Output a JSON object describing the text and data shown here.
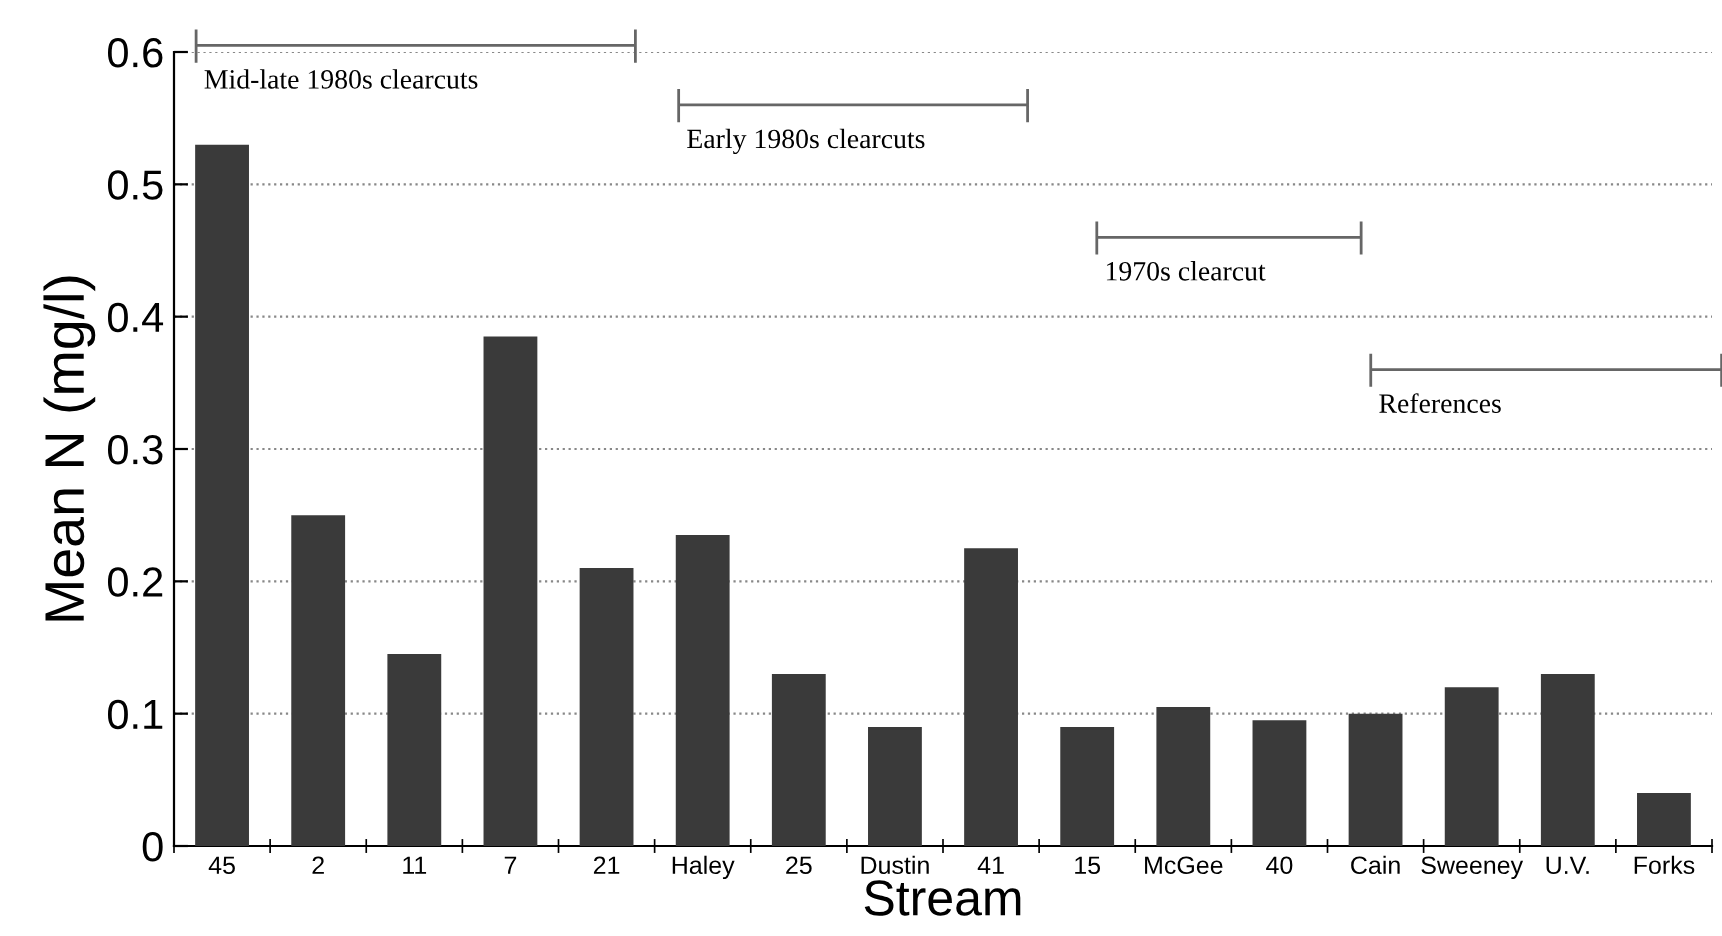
{
  "chart_data": {
    "type": "bar",
    "xlabel": "Stream",
    "ylabel": "Mean N (mg/l)",
    "categories": [
      "45",
      "2",
      "11",
      "7",
      "21",
      "Haley",
      "25",
      "Dustin",
      "41",
      "15",
      "McGee",
      "40",
      "Cain",
      "Sweeney",
      "U.V.",
      "Forks"
    ],
    "values": [
      0.53,
      0.25,
      0.145,
      0.385,
      0.21,
      0.235,
      0.13,
      0.09,
      0.225,
      0.09,
      0.105,
      0.095,
      0.1,
      0.12,
      0.13,
      0.04
    ],
    "color": "#3a3a3a",
    "ylim": [
      0,
      0.6
    ],
    "yticks": [
      0,
      0.1,
      0.2,
      0.3,
      0.4,
      0.5,
      0.6
    ],
    "grid": "y",
    "annotations": [
      "Mid-late 1980s clearcuts",
      "Early 1980s clearcuts",
      "1970s clearcut",
      "References"
    ]
  }
}
